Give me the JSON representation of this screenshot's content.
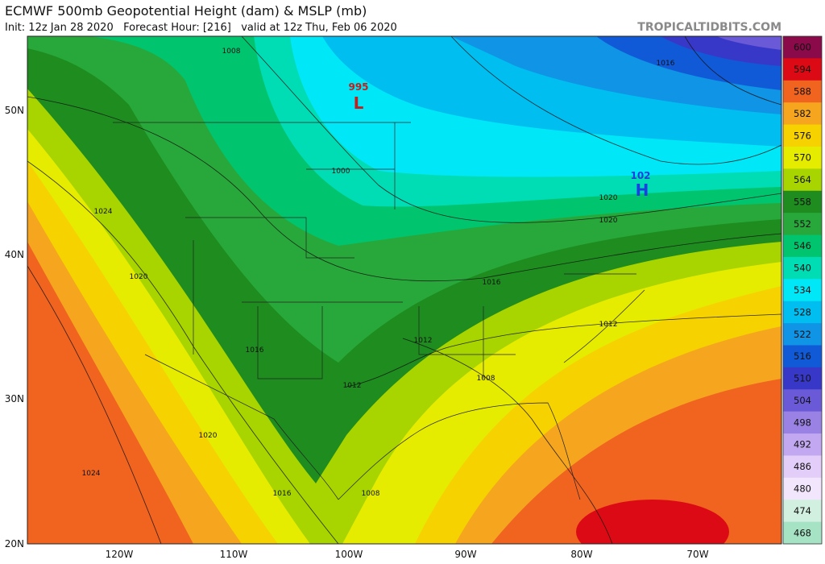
{
  "header": {
    "title": "ECMWF 500mb Geopotential Height (dam) & MSLP (mb)",
    "subtitle": "Init: 12z Jan 28 2020   Forecast Hour: [216]   valid at 12z Thu, Feb 06 2020",
    "site": "TROPICALTIDBITS.COM"
  },
  "map": {
    "lat_labels": [
      "50N",
      "40N",
      "30N",
      "20N"
    ],
    "lon_labels": [
      "120W",
      "110W",
      "100W",
      "90W",
      "80W",
      "70W"
    ],
    "contour_labels": [
      "1008",
      "1016",
      "1000",
      "1024",
      "1020",
      "1020",
      "1020",
      "1016",
      "1012",
      "1012",
      "1016",
      "1012",
      "1008",
      "1020",
      "1024",
      "1016",
      "1008"
    ],
    "low": {
      "pressure": "995",
      "letter": "L"
    },
    "high": {
      "pressure": "102",
      "letter": "H"
    }
  },
  "colorbar": {
    "values": [
      600,
      594,
      588,
      582,
      576,
      570,
      564,
      558,
      552,
      546,
      540,
      534,
      528,
      522,
      516,
      510,
      504,
      498,
      492,
      486,
      480,
      474,
      468
    ],
    "colors": [
      "#8a0a4a",
      "#dc0a14",
      "#f06420",
      "#f5a61e",
      "#f5d200",
      "#e6ec00",
      "#a8d400",
      "#1e8c1e",
      "#28a83a",
      "#00c46e",
      "#00dcb4",
      "#00e8f8",
      "#00bef0",
      "#1094e6",
      "#105ad8",
      "#3838c8",
      "#6a5ad8",
      "#9a82e4",
      "#c2a8f0",
      "#e2cef8",
      "#f2e6fc",
      "#d2f0e0",
      "#a6e2c4"
    ]
  }
}
